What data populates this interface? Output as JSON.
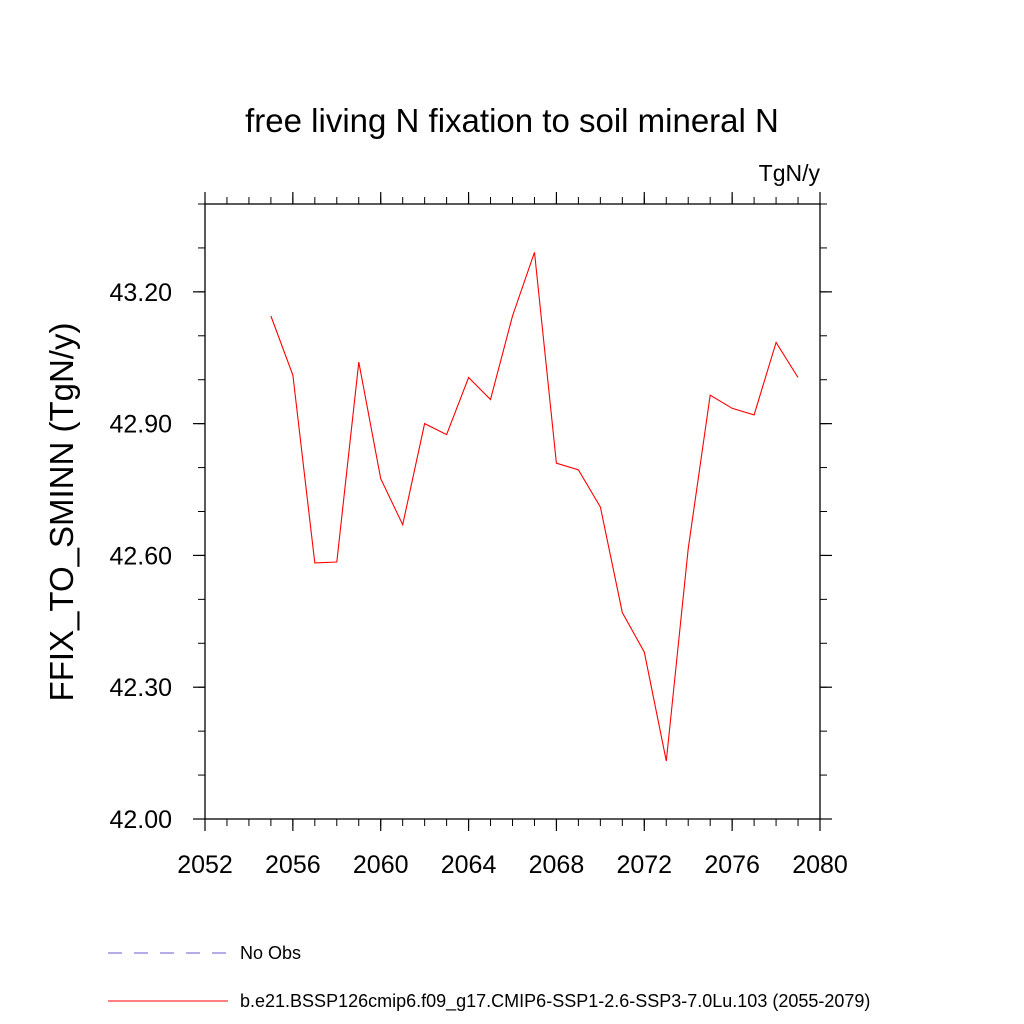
{
  "chart_data": {
    "type": "line",
    "title": "free living N fixation to soil mineral N",
    "units": "TgN/y",
    "xlabel": "",
    "ylabel": "FFIX_TO_SMINN  (TgN/y)",
    "xlim": [
      2052,
      2080
    ],
    "ylim": [
      42.0,
      43.4
    ],
    "x_ticks": [
      2052,
      2056,
      2060,
      2064,
      2068,
      2072,
      2076,
      2080
    ],
    "x_tick_labels": [
      "2052",
      "2056",
      "2060",
      "2064",
      "2068",
      "2072",
      "2076",
      "2080"
    ],
    "y_ticks": [
      42.0,
      42.3,
      42.6,
      42.9,
      43.2
    ],
    "y_tick_labels": [
      "42.00",
      "42.30",
      "42.60",
      "42.90",
      "43.20"
    ],
    "x_minor_step": 1,
    "y_minor_step": 0.1,
    "series": [
      {
        "name": "b.e21.BSSP126cmip6.f09_g17.CMIP6-SSP1-2.6-SSP3-7.0Lu.103 (2055-2079)",
        "color": "#ff0000",
        "x": [
          2055,
          2056,
          2057,
          2058,
          2059,
          2060,
          2061,
          2062,
          2063,
          2064,
          2065,
          2066,
          2067,
          2068,
          2069,
          2070,
          2071,
          2072,
          2073,
          2074,
          2075,
          2076,
          2077,
          2078,
          2079
        ],
        "values": [
          43.145,
          43.01,
          42.583,
          42.585,
          43.04,
          42.775,
          42.67,
          42.9,
          42.875,
          43.005,
          42.955,
          43.145,
          43.29,
          42.81,
          42.795,
          42.71,
          42.47,
          42.38,
          42.132,
          42.615,
          42.965,
          42.935,
          42.92,
          43.085,
          43.005
        ]
      }
    ],
    "legend": [
      {
        "label": "No Obs",
        "color": "#6a5acd",
        "style": "dashed"
      },
      {
        "label": "b.e21.BSSP126cmip6.f09_g17.CMIP6-SSP1-2.6-SSP3-7.0Lu.103 (2055-2079)",
        "color": "#ff0000",
        "style": "solid"
      }
    ]
  }
}
